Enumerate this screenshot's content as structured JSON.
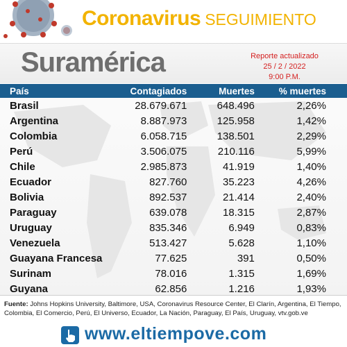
{
  "header": {
    "title_main": "Coronavirus",
    "title_sub": "SEGUIMIENTO",
    "accent_color": "#f2b300"
  },
  "region": "Suramérica",
  "report": {
    "line1": "Reporte actualizado",
    "date": "25 / 2 / 2022",
    "time": "9:00 P.M."
  },
  "chart_data": {
    "type": "table",
    "columns": [
      "País",
      "Contagiados",
      "Muertes",
      "% muertes"
    ],
    "rows": [
      {
        "country": "Brasil",
        "cases": "28.679.671",
        "deaths": "648.496",
        "pct": "2,26%"
      },
      {
        "country": "Argentina",
        "cases": "8.887.973",
        "deaths": "125.958",
        "pct": "1,42%"
      },
      {
        "country": "Colombia",
        "cases": "6.058.715",
        "deaths": "138.501",
        "pct": "2,29%"
      },
      {
        "country": "Perú",
        "cases": "3.506.075",
        "deaths": "210.116",
        "pct": "5,99%"
      },
      {
        "country": "Chile",
        "cases": "2.985.873",
        "deaths": "41.919",
        "pct": "1,40%"
      },
      {
        "country": "Ecuador",
        "cases": "827.760",
        "deaths": "35.223",
        "pct": "4,26%"
      },
      {
        "country": "Bolivia",
        "cases": "892.537",
        "deaths": "21.414",
        "pct": "2,40%"
      },
      {
        "country": "Paraguay",
        "cases": "639.078",
        "deaths": "18.315",
        "pct": "2,87%"
      },
      {
        "country": "Uruguay",
        "cases": "835.346",
        "deaths": "6.949",
        "pct": "0,83%"
      },
      {
        "country": "Venezuela",
        "cases": "513.427",
        "deaths": "5.628",
        "pct": "1,10%"
      },
      {
        "country": "Guayana Francesa",
        "cases": "77.625",
        "deaths": "391",
        "pct": "0,50%"
      },
      {
        "country": "Surinam",
        "cases": "78.016",
        "deaths": "1.315",
        "pct": "1,69%"
      },
      {
        "country": "Guyana",
        "cases": "62.856",
        "deaths": "1.216",
        "pct": "1,93%"
      }
    ],
    "header_color": "#1b5e8f"
  },
  "footer": {
    "source_label": "Fuente:",
    "source_text": " Johns Hopkins University, Baltimore, USA, Coronavirus Resource Center,  El Clarín, Argentina, El Tiempo, Colombia, El Comercio, Perú, El Universo, Ecuador, La Nación, Paraguay, El País, Uruguay, vtv.gob.ve",
    "website": "www.eltiempove.com",
    "link_color": "#1b6aa5"
  }
}
